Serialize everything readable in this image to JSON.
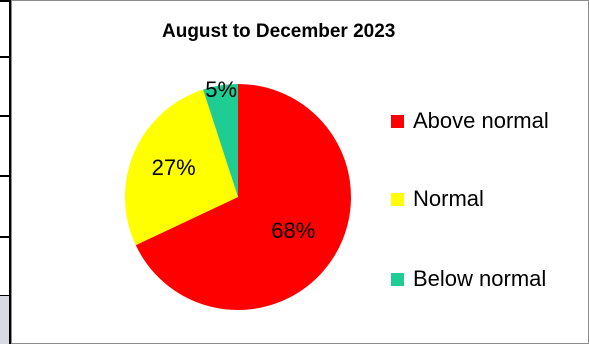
{
  "chart_data": {
    "type": "pie",
    "title": "August to December 2023",
    "categories": [
      "Above normal",
      "Normal",
      "Below normal"
    ],
    "values": [
      68,
      27,
      5
    ],
    "labels": [
      "68%",
      "27%",
      "5%"
    ],
    "colors": [
      "#ff0000",
      "#ffff00",
      "#1fcc94"
    ],
    "legend_position": "right"
  }
}
